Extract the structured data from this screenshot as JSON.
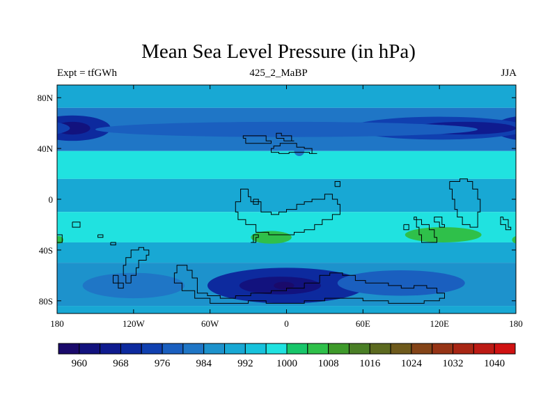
{
  "title": "Mean Sea Level Pressure (in hPa)",
  "subtitle_left": "Expt = tfGWh",
  "subtitle_center": "425_2_MaBP",
  "subtitle_right": "JJA",
  "colors": {
    "frame": "#000000",
    "coast": "#000000"
  },
  "chart_data": {
    "type": "heatmap",
    "variable": "Mean Sea Level Pressure",
    "units": "hPa",
    "x_range": [
      -180,
      180
    ],
    "y_range": [
      -90,
      90
    ],
    "x_ticks": [
      {
        "value": -180,
        "label": "180"
      },
      {
        "value": -120,
        "label": "120W"
      },
      {
        "value": -60,
        "label": "60W"
      },
      {
        "value": 0,
        "label": "0"
      },
      {
        "value": 60,
        "label": "60E"
      },
      {
        "value": 120,
        "label": "120E"
      },
      {
        "value": 180,
        "label": "180"
      }
    ],
    "y_ticks": [
      {
        "value": 80,
        "label": "80N"
      },
      {
        "value": 40,
        "label": "40N"
      },
      {
        "value": 0,
        "label": "0"
      },
      {
        "value": -40,
        "label": "40S"
      },
      {
        "value": -80,
        "label": "80S"
      }
    ],
    "colorbar": {
      "levels": [
        956,
        960,
        964,
        968,
        972,
        976,
        980,
        984,
        988,
        992,
        996,
        1000,
        1004,
        1008,
        1012,
        1016,
        1020,
        1024,
        1028,
        1032,
        1036,
        1040,
        1044
      ],
      "colors": [
        "#1a0a6b",
        "#12127e",
        "#0f1b8f",
        "#0d2a9e",
        "#1040b0",
        "#1a5fbf",
        "#1f76c6",
        "#1d92cc",
        "#18a8d4",
        "#17c2dc",
        "#20e2e0",
        "#18c66a",
        "#2fc04a",
        "#3e9a2b",
        "#4a7f26",
        "#5c6a20",
        "#6e5a1c",
        "#844418",
        "#963416",
        "#a82614",
        "#bc1a14",
        "#d01212"
      ],
      "labels": [
        {
          "value": 960,
          "label": "960"
        },
        {
          "value": 968,
          "label": "968"
        },
        {
          "value": 976,
          "label": "976"
        },
        {
          "value": 984,
          "label": "984"
        },
        {
          "value": 992,
          "label": "992"
        },
        {
          "value": 1000,
          "label": "1000"
        },
        {
          "value": 1008,
          "label": "1008"
        },
        {
          "value": 1016,
          "label": "1016"
        },
        {
          "value": 1024,
          "label": "1024"
        },
        {
          "value": 1032,
          "label": "1032"
        },
        {
          "value": 1040,
          "label": "1040"
        }
      ]
    },
    "zonal_bands": [
      {
        "lat_top": 90,
        "lat_bottom": 72,
        "value": 990
      },
      {
        "lat_top": 72,
        "lat_bottom": 38,
        "value": 982
      },
      {
        "lat_top": 38,
        "lat_bottom": 16,
        "value": 998
      },
      {
        "lat_top": 16,
        "lat_bottom": -10,
        "value": 990
      },
      {
        "lat_top": -10,
        "lat_bottom": -34,
        "value": 998
      },
      {
        "lat_top": -34,
        "lat_bottom": -50,
        "value": 990
      },
      {
        "lat_top": -50,
        "lat_bottom": -84,
        "value": 986
      },
      {
        "lat_top": -84,
        "lat_bottom": -90,
        "value": 990
      }
    ],
    "features": [
      {
        "name": "north-pacific-low",
        "lon": -168,
        "lat": 56,
        "rlon": 30,
        "rlat": 10,
        "value": 970
      },
      {
        "name": "north-pacific-low-core",
        "lon": -168,
        "lat": 56,
        "rlon": 14,
        "rlat": 5,
        "value": 962
      },
      {
        "name": "north-atlantic-low",
        "lon": 120,
        "lat": 56,
        "rlon": 70,
        "rlat": 9,
        "value": 972
      },
      {
        "name": "north-atlantic-low-core",
        "lon": 140,
        "lat": 56,
        "rlon": 40,
        "rlat": 5,
        "value": 964
      },
      {
        "name": "mid-lat-trough",
        "lon": 0,
        "lat": 55,
        "rlon": 150,
        "rlat": 6,
        "value": 978
      },
      {
        "name": "antarctic-low",
        "lon": 0,
        "lat": -68,
        "rlon": 62,
        "rlat": 14,
        "value": 968
      },
      {
        "name": "antarctic-low-core",
        "lon": -5,
        "lat": -68,
        "rlon": 32,
        "rlat": 7,
        "value": 962
      },
      {
        "name": "antarctic-low-pocket",
        "lon": -2,
        "lat": -68,
        "rlon": 8,
        "rlat": 3,
        "value": 958
      },
      {
        "name": "southern-trough-east",
        "lon": 90,
        "lat": -66,
        "rlon": 50,
        "rlat": 10,
        "value": 978
      },
      {
        "name": "southern-trough-west",
        "lon": -120,
        "lat": -68,
        "rlon": 40,
        "rlat": 10,
        "value": 982
      },
      {
        "name": "atlantic-high",
        "lon": -12,
        "lat": -30,
        "rlon": 16,
        "rlat": 5,
        "value": 1004
      },
      {
        "name": "indian-high",
        "lon": 123,
        "lat": -28,
        "rlon": 30,
        "rlat": 6,
        "value": 1004
      },
      {
        "name": "west-pacific-high",
        "lon": -179,
        "lat": -32,
        "rlon": 4,
        "rlat": 3,
        "value": 1004
      },
      {
        "name": "north-cyan-patch",
        "lon": 10,
        "lat": 38,
        "rlon": 4,
        "rlat": 4,
        "value": 982
      }
    ],
    "coastlines": [
      [
        [
          -10,
          40
        ],
        [
          -5,
          42
        ],
        [
          0,
          44
        ],
        [
          8,
          44
        ],
        [
          14,
          41
        ],
        [
          20,
          40
        ],
        [
          24,
          36
        ],
        [
          18,
          36
        ],
        [
          10,
          37
        ],
        [
          2,
          37
        ],
        [
          -6,
          36
        ],
        [
          -12,
          37
        ],
        [
          -10,
          40
        ]
      ],
      [
        [
          -30,
          8
        ],
        [
          -28,
          2
        ],
        [
          -20,
          -2
        ],
        [
          -12,
          -10
        ],
        [
          -6,
          -12
        ],
        [
          0,
          -10
        ],
        [
          8,
          -8
        ],
        [
          14,
          -4
        ],
        [
          20,
          -2
        ],
        [
          30,
          0
        ],
        [
          36,
          4
        ],
        [
          40,
          0
        ],
        [
          42,
          -4
        ],
        [
          36,
          -12
        ],
        [
          28,
          -16
        ],
        [
          22,
          -20
        ],
        [
          14,
          -24
        ],
        [
          6,
          -26
        ],
        [
          -4,
          -28
        ],
        [
          -14,
          -28
        ],
        [
          -24,
          -26
        ],
        [
          -32,
          -20
        ],
        [
          -38,
          -16
        ],
        [
          -40,
          -10
        ],
        [
          -36,
          -2
        ],
        [
          -30,
          8
        ]
      ],
      [
        [
          -26,
          0
        ],
        [
          -26,
          -4
        ],
        [
          -22,
          -4
        ],
        [
          -22,
          0
        ],
        [
          -26,
          0
        ]
      ],
      [
        [
          38,
          10
        ],
        [
          42,
          10
        ],
        [
          42,
          14
        ],
        [
          38,
          14
        ],
        [
          38,
          10
        ]
      ],
      [
        [
          -168,
          -18
        ],
        [
          -162,
          -18
        ],
        [
          -162,
          -22
        ],
        [
          -168,
          -22
        ],
        [
          -168,
          -18
        ]
      ],
      [
        [
          -148,
          -28
        ],
        [
          -144,
          -28
        ],
        [
          -144,
          -30
        ],
        [
          -148,
          -30
        ],
        [
          -148,
          -28
        ]
      ],
      [
        [
          -138,
          -34
        ],
        [
          -134,
          -34
        ],
        [
          -134,
          -36
        ],
        [
          -138,
          -36
        ],
        [
          -138,
          -34
        ]
      ],
      [
        [
          -180,
          -24
        ],
        [
          -176,
          -28
        ],
        [
          -176,
          -34
        ],
        [
          -180,
          -34
        ]
      ],
      [
        [
          -84,
          -52
        ],
        [
          -78,
          -52
        ],
        [
          -74,
          -56
        ],
        [
          -70,
          -62
        ],
        [
          -70,
          -70
        ],
        [
          -62,
          -74
        ],
        [
          -52,
          -76
        ],
        [
          -40,
          -78
        ],
        [
          -28,
          -76
        ],
        [
          -12,
          -74
        ],
        [
          0,
          -72
        ],
        [
          14,
          -70
        ],
        [
          26,
          -66
        ],
        [
          34,
          -60
        ],
        [
          44,
          -58
        ],
        [
          54,
          -60
        ],
        [
          62,
          -64
        ],
        [
          70,
          -66
        ],
        [
          80,
          -66
        ],
        [
          90,
          -68
        ],
        [
          100,
          -70
        ],
        [
          110,
          -68
        ],
        [
          118,
          -70
        ],
        [
          124,
          -74
        ],
        [
          120,
          -78
        ],
        [
          108,
          -80
        ],
        [
          94,
          -82
        ],
        [
          80,
          -82
        ],
        [
          60,
          -80
        ],
        [
          44,
          -78
        ],
        [
          30,
          -78
        ],
        [
          14,
          -80
        ],
        [
          0,
          -82
        ],
        [
          -16,
          -82
        ],
        [
          -30,
          -80
        ],
        [
          -44,
          -82
        ],
        [
          -60,
          -82
        ],
        [
          -72,
          -78
        ],
        [
          -82,
          -72
        ],
        [
          -88,
          -66
        ],
        [
          -86,
          -58
        ],
        [
          -84,
          -52
        ]
      ],
      [
        [
          -122,
          -66
        ],
        [
          -118,
          -60
        ],
        [
          -116,
          -54
        ],
        [
          -110,
          -48
        ],
        [
          -108,
          -44
        ],
        [
          -112,
          -40
        ],
        [
          -116,
          -38
        ],
        [
          -122,
          -40
        ],
        [
          -126,
          -46
        ],
        [
          -128,
          -52
        ],
        [
          -126,
          -60
        ],
        [
          -122,
          -66
        ]
      ],
      [
        [
          -132,
          -60
        ],
        [
          -128,
          -66
        ],
        [
          -132,
          -70
        ],
        [
          -136,
          -66
        ],
        [
          -132,
          -60
        ]
      ],
      [
        [
          128,
          14
        ],
        [
          130,
          8
        ],
        [
          132,
          0
        ],
        [
          134,
          -8
        ],
        [
          138,
          -14
        ],
        [
          144,
          -20
        ],
        [
          150,
          -22
        ],
        [
          152,
          -10
        ],
        [
          150,
          0
        ],
        [
          146,
          8
        ],
        [
          142,
          14
        ],
        [
          136,
          16
        ],
        [
          128,
          14
        ]
      ],
      [
        [
          118,
          -14
        ],
        [
          122,
          -14
        ],
        [
          124,
          -20
        ],
        [
          120,
          -22
        ],
        [
          116,
          -18
        ],
        [
          118,
          -14
        ]
      ],
      [
        [
          100,
          -14
        ],
        [
          106,
          -16
        ],
        [
          112,
          -20
        ],
        [
          116,
          -24
        ],
        [
          118,
          -30
        ],
        [
          112,
          -34
        ],
        [
          106,
          -34
        ],
        [
          104,
          -28
        ],
        [
          102,
          -22
        ],
        [
          100,
          -14
        ]
      ],
      [
        [
          92,
          -20
        ],
        [
          96,
          -20
        ],
        [
          96,
          -24
        ],
        [
          92,
          -24
        ],
        [
          92,
          -20
        ]
      ],
      [
        [
          -34,
          48
        ],
        [
          -26,
          50
        ],
        [
          -16,
          50
        ],
        [
          -12,
          46
        ],
        [
          -18,
          44
        ],
        [
          -26,
          44
        ],
        [
          -32,
          44
        ],
        [
          -34,
          48
        ]
      ],
      [
        [
          -8,
          48
        ],
        [
          -4,
          52
        ],
        [
          4,
          50
        ],
        [
          6,
          46
        ],
        [
          -2,
          46
        ],
        [
          -8,
          48
        ]
      ],
      [
        [
          170,
          -14
        ],
        [
          174,
          -16
        ],
        [
          176,
          -22
        ],
        [
          172,
          -24
        ],
        [
          168,
          -20
        ],
        [
          170,
          -14
        ]
      ],
      [
        [
          -28,
          -34
        ],
        [
          -24,
          -34
        ],
        [
          -22,
          -30
        ],
        [
          -26,
          -28
        ],
        [
          -28,
          -34
        ]
      ]
    ]
  }
}
